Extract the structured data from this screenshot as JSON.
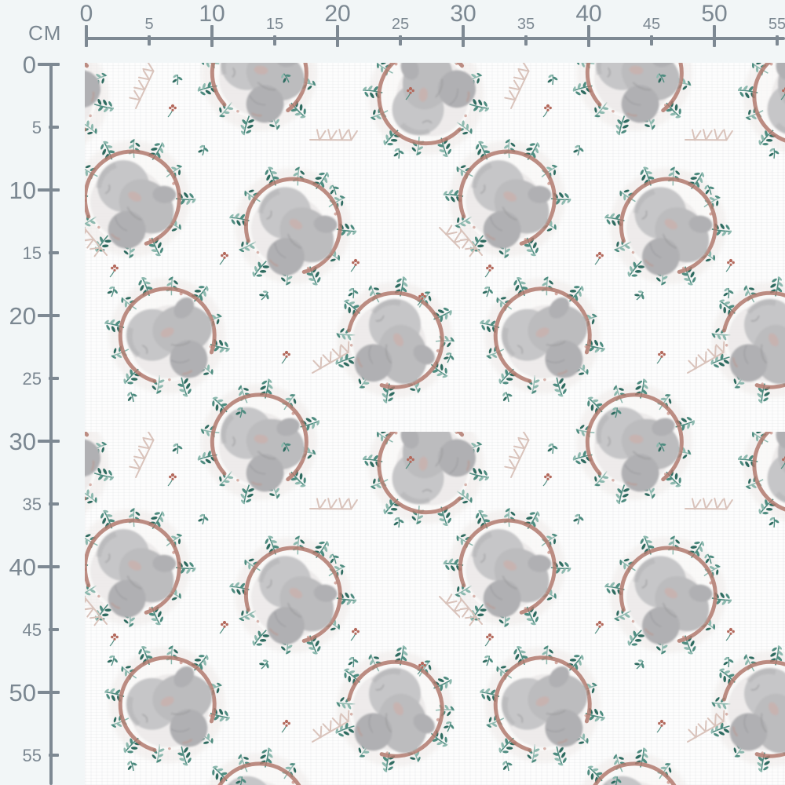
{
  "unit_label": "CM",
  "rulers": {
    "top": {
      "ticks": [
        {
          "label": "0",
          "cm": 0,
          "major": true
        },
        {
          "label": "5",
          "cm": 5,
          "major": false
        },
        {
          "label": "10",
          "cm": 10,
          "major": true
        },
        {
          "label": "15",
          "cm": 15,
          "major": false
        },
        {
          "label": "20",
          "cm": 20,
          "major": true
        },
        {
          "label": "25",
          "cm": 25,
          "major": false
        },
        {
          "label": "30",
          "cm": 30,
          "major": true
        },
        {
          "label": "35",
          "cm": 35,
          "major": false
        },
        {
          "label": "40",
          "cm": 40,
          "major": true
        },
        {
          "label": "45",
          "cm": 45,
          "major": false
        },
        {
          "label": "50",
          "cm": 50,
          "major": true
        },
        {
          "label": "55",
          "cm": 55,
          "major": false
        }
      ]
    },
    "left": {
      "ticks": [
        {
          "label": "0",
          "cm": 0,
          "major": true
        },
        {
          "label": "5",
          "cm": 5,
          "major": false
        },
        {
          "label": "10",
          "cm": 10,
          "major": true
        },
        {
          "label": "15",
          "cm": 15,
          "major": false
        },
        {
          "label": "20",
          "cm": 20,
          "major": true
        },
        {
          "label": "25",
          "cm": 25,
          "major": false
        },
        {
          "label": "30",
          "cm": 30,
          "major": true
        },
        {
          "label": "35",
          "cm": 35,
          "major": false
        },
        {
          "label": "40",
          "cm": 40,
          "major": true
        },
        {
          "label": "45",
          "cm": 45,
          "major": false
        },
        {
          "label": "50",
          "cm": 50,
          "major": true
        },
        {
          "label": "55",
          "cm": 55,
          "major": false
        }
      ]
    }
  },
  "colors": {
    "margin_bg": "#f2f6f7",
    "ruler": "#7e8993",
    "ruler_text": "#7b8791",
    "fabric_bg": "#fdfdfd",
    "baby_gray": "#c6c6c8",
    "baby_gray_mid": "#bcbcbe",
    "baby_gray_deep": "#b0b0b3",
    "leaf_dark": "#2e6b60",
    "leaf_mid": "#4e8c80",
    "leaf_light": "#8db9af",
    "arc_rust": "#b27a6f",
    "branch_pink": "#d9c3bb",
    "flower_rust": "#b4695c",
    "cheek_pink": "#d8a69b"
  }
}
